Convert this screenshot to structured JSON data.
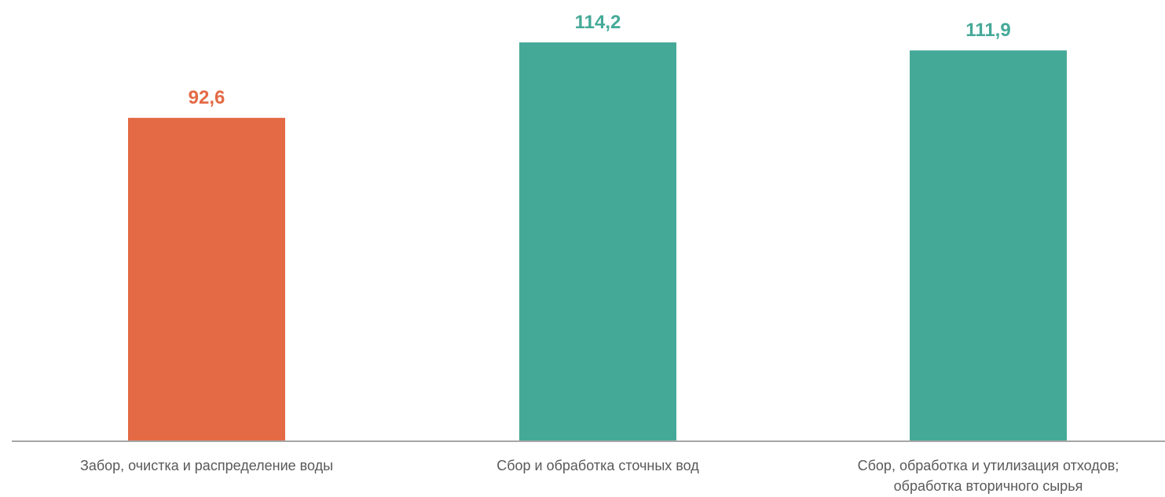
{
  "chart_data": {
    "type": "bar",
    "categories": [
      [
        "Забор, очистка и распределение воды"
      ],
      [
        "Сбор и обработка сточных вод"
      ],
      [
        "Сбор, обработка и утилизация отходов;",
        "обработка вторичного сырья"
      ]
    ],
    "values": [
      92.6,
      114.2,
      111.9
    ],
    "value_labels": [
      "92,6",
      "114,2",
      "111,9"
    ],
    "colors": [
      "#E36A45",
      "#45A998",
      "#45A998"
    ],
    "ylim": [
      0,
      114.2
    ],
    "grid": false,
    "legend": "none"
  }
}
